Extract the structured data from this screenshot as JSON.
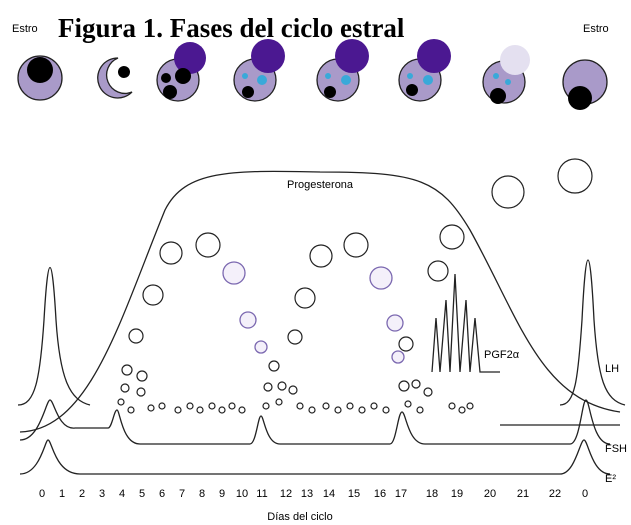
{
  "header": {
    "title": "Figura 1. Fases del ciclo estral"
  },
  "phase_labels": {
    "left": "Estro",
    "right": "Estro"
  },
  "curve_labels": {
    "progesterone": "Progesterona",
    "pgf": "PGF2α",
    "lh": "LH",
    "fsh": "FSH",
    "e2": "E²"
  },
  "x_axis": {
    "labels": [
      "0",
      "1",
      "2",
      "3",
      "4",
      "5",
      "6",
      "7",
      "8",
      "9",
      "10",
      "11",
      "12",
      "13",
      "14",
      "15",
      "16",
      "17",
      "18",
      "19",
      "20",
      "21",
      "22",
      "0"
    ],
    "title": "Días del ciclo"
  }
}
